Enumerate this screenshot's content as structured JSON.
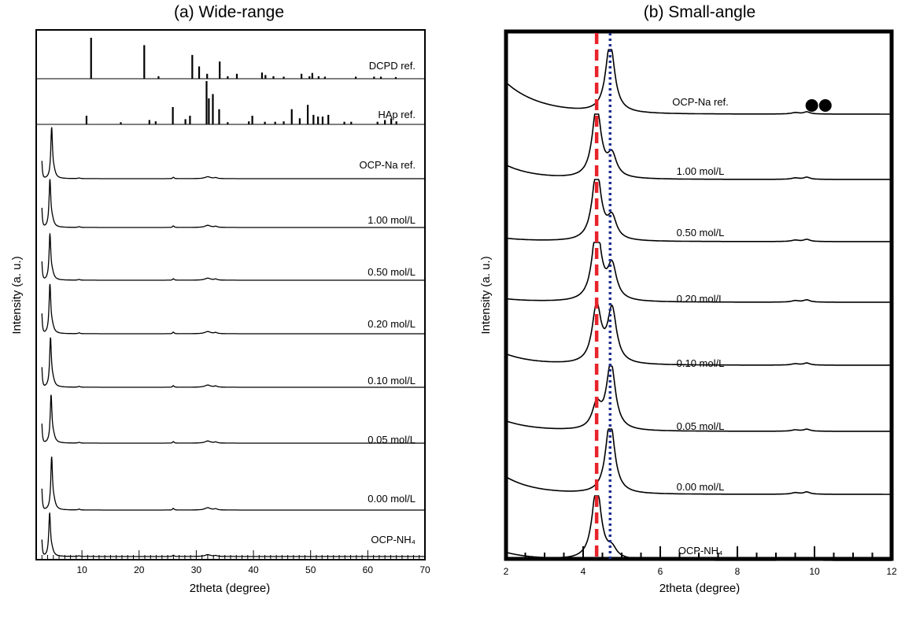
{
  "chart_data": [
    {
      "type": "line",
      "title": "(a) Wide-range",
      "xlabel": "2theta (degree)",
      "ylabel": "Intensity (a. u.)",
      "xlim": [
        2,
        70
      ],
      "x_ticks": [
        10,
        20,
        30,
        40,
        50,
        60,
        70
      ],
      "series": [
        {
          "name": "DCPD ref.",
          "style": "stick",
          "peaks": [
            [
              11.6,
              1.0
            ],
            [
              20.9,
              0.82
            ],
            [
              23.4,
              0.06
            ],
            [
              29.3,
              0.58
            ],
            [
              30.5,
              0.3
            ],
            [
              31.9,
              0.12
            ],
            [
              34.1,
              0.42
            ],
            [
              35.5,
              0.06
            ],
            [
              37.1,
              0.12
            ],
            [
              41.5,
              0.15
            ],
            [
              42.1,
              0.09
            ],
            [
              43.5,
              0.06
            ],
            [
              45.3,
              0.05
            ],
            [
              48.4,
              0.12
            ],
            [
              49.8,
              0.06
            ],
            [
              50.3,
              0.14
            ],
            [
              51.4,
              0.06
            ],
            [
              52.5,
              0.05
            ],
            [
              57.9,
              0.05
            ],
            [
              61.1,
              0.05
            ],
            [
              62.3,
              0.05
            ],
            [
              64.9,
              0.04
            ]
          ]
        },
        {
          "name": "HAp ref.",
          "style": "stick",
          "peaks": [
            [
              10.8,
              0.2
            ],
            [
              16.8,
              0.05
            ],
            [
              21.8,
              0.1
            ],
            [
              22.9,
              0.07
            ],
            [
              25.9,
              0.4
            ],
            [
              28.1,
              0.12
            ],
            [
              28.9,
              0.2
            ],
            [
              31.8,
              1.0
            ],
            [
              32.2,
              0.6
            ],
            [
              32.9,
              0.7
            ],
            [
              34.0,
              0.35
            ],
            [
              35.5,
              0.05
            ],
            [
              39.2,
              0.07
            ],
            [
              39.8,
              0.2
            ],
            [
              42.0,
              0.06
            ],
            [
              43.8,
              0.06
            ],
            [
              45.3,
              0.07
            ],
            [
              46.7,
              0.35
            ],
            [
              48.1,
              0.14
            ],
            [
              49.5,
              0.45
            ],
            [
              50.5,
              0.22
            ],
            [
              51.3,
              0.18
            ],
            [
              52.1,
              0.18
            ],
            [
              53.1,
              0.22
            ],
            [
              55.9,
              0.06
            ],
            [
              57.1,
              0.06
            ],
            [
              61.7,
              0.06
            ],
            [
              63.0,
              0.1
            ],
            [
              64.1,
              0.14
            ],
            [
              65.0,
              0.07
            ]
          ]
        },
        {
          "name": "OCP-Na ref.",
          "style": "pattern",
          "peak": 4.7,
          "peak_height": 1.0
        },
        {
          "name": "1.00 mol/L",
          "style": "pattern",
          "peak": 4.4,
          "peak_height": 0.85
        },
        {
          "name": "0.50 mol/L",
          "style": "pattern",
          "peak": 4.4,
          "peak_height": 0.85
        },
        {
          "name": "0.20 mol/L",
          "style": "pattern",
          "peak": 4.4,
          "peak_height": 0.85
        },
        {
          "name": "0.10 mol/L",
          "style": "pattern",
          "peak": 4.5,
          "peak_height": 0.85
        },
        {
          "name": "0.05 mol/L",
          "style": "pattern",
          "peak": 4.6,
          "peak_height": 0.85
        },
        {
          "name": "0.00 mol/L",
          "style": "pattern",
          "peak": 4.7,
          "peak_height": 0.85
        },
        {
          "name": "OCP-NH₄",
          "style": "pattern",
          "peak": 4.35,
          "peak_height": 0.9
        }
      ]
    },
    {
      "type": "line",
      "title": "(b) Small-angle",
      "xlabel": "2theta (degree)",
      "ylabel": "Intensity (a. u.)",
      "xlim": [
        2,
        12
      ],
      "x_ticks": [
        2,
        4,
        6,
        8,
        10,
        12
      ],
      "reference_lines": [
        {
          "x": 4.35,
          "style": "dashed",
          "color": "#e8232b"
        },
        {
          "x": 4.7,
          "style": "dotted",
          "color": "#1f2f8f"
        }
      ],
      "series": [
        {
          "name": "OCP-Na ref.",
          "peaks": [
            [
              4.7,
              1.0
            ]
          ],
          "low_angle_rise": true
        },
        {
          "name": "1.00 mol/L",
          "peaks": [
            [
              4.35,
              1.0
            ],
            [
              4.75,
              0.3
            ]
          ]
        },
        {
          "name": "0.50 mol/L",
          "peaks": [
            [
              4.35,
              1.0
            ],
            [
              4.75,
              0.3
            ]
          ]
        },
        {
          "name": "0.20 mol/L",
          "peaks": [
            [
              4.35,
              1.0
            ],
            [
              4.75,
              0.45
            ]
          ]
        },
        {
          "name": "0.10 mol/L",
          "peaks": [
            [
              4.35,
              0.85
            ],
            [
              4.75,
              0.8
            ]
          ]
        },
        {
          "name": "0.05 mol/L",
          "peaks": [
            [
              4.35,
              0.35
            ],
            [
              4.72,
              1.0
            ]
          ]
        },
        {
          "name": "0.00 mol/L",
          "peaks": [
            [
              4.7,
              1.0
            ]
          ]
        },
        {
          "name": "OCP-NH₄",
          "peaks": [
            [
              4.35,
              1.0
            ],
            [
              4.75,
              0.12
            ]
          ]
        }
      ]
    }
  ],
  "marker_color": "#000000"
}
